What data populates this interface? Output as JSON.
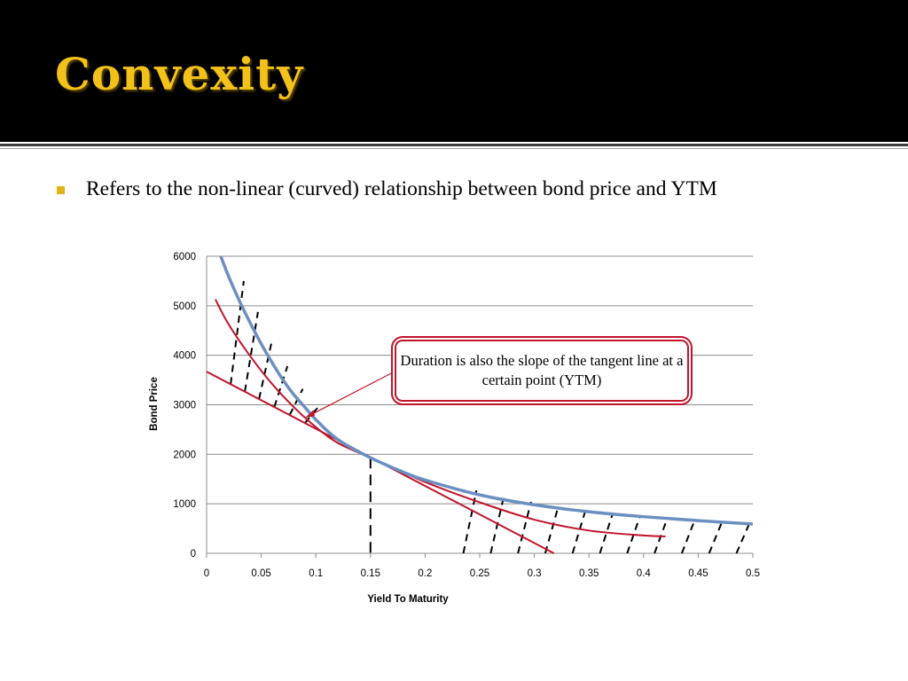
{
  "slide": {
    "title": "Convexity",
    "bullets": [
      "Refers to the non-linear (curved) relationship between bond price and YTM"
    ],
    "callout": "Duration is also the slope of the tangent line at a certain point (YTM)",
    "colors": {
      "title": "#f2c21b",
      "bullet": "#e0b318",
      "price_curve": "#6b8fc0",
      "approx_curve": "#c0142a",
      "tangent_line": "#c0142a",
      "callout_border": "#c0142a"
    }
  },
  "chart_data": {
    "type": "line",
    "xlabel": "Yield To Maturity",
    "ylabel": "Bond Price",
    "xlim": [
      0,
      0.5
    ],
    "ylim": [
      0,
      6000
    ],
    "x_ticks": [
      "0",
      "0.05",
      "0.1",
      "0.15",
      "0.2",
      "0.25",
      "0.3",
      "0.35",
      "0.4",
      "0.45",
      "0.5"
    ],
    "y_ticks": [
      "0",
      "1000",
      "2000",
      "3000",
      "4000",
      "5000",
      "6000"
    ],
    "grid": "horizontal",
    "series": [
      {
        "role": "price-curve",
        "x": [
          0.013,
          0.02,
          0.03,
          0.04,
          0.05,
          0.06,
          0.07,
          0.08,
          0.09,
          0.1,
          0.12,
          0.15,
          0.18,
          0.2,
          0.25,
          0.3,
          0.35,
          0.4,
          0.45,
          0.5
        ],
        "y": [
          6000,
          5600,
          5100,
          4650,
          4230,
          3850,
          3500,
          3200,
          2950,
          2700,
          2300,
          1930,
          1640,
          1480,
          1180,
          980,
          840,
          740,
          660,
          590
        ]
      },
      {
        "role": "second-order-approximation",
        "x": [
          0.008,
          0.02,
          0.04,
          0.06,
          0.08,
          0.1,
          0.12,
          0.15,
          0.2,
          0.25,
          0.3,
          0.35,
          0.4,
          0.42
        ],
        "y": [
          5130,
          4630,
          3980,
          3420,
          2950,
          2550,
          2230,
          1930,
          1440,
          1030,
          680,
          460,
          360,
          340
        ]
      },
      {
        "role": "tangent-line",
        "x": [
          0,
          0.318
        ],
        "y": [
          3670,
          0
        ]
      }
    ],
    "tangent_point": {
      "x": 0.15,
      "y": 1930
    },
    "hatch_x": [
      0.003,
      0.012,
      0.022,
      0.035,
      0.048,
      0.062,
      0.076,
      0.09,
      0.235,
      0.26,
      0.285,
      0.31,
      0.335,
      0.36,
      0.385,
      0.41,
      0.435,
      0.46,
      0.485
    ]
  }
}
